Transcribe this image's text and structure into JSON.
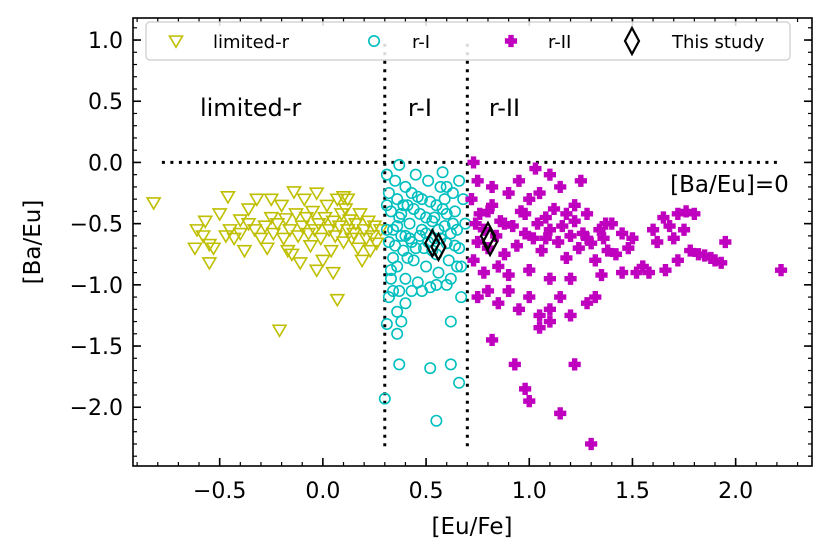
{
  "chart_data": {
    "type": "scatter",
    "xlabel": "[Eu/Fe]",
    "ylabel": "[Ba/Eu]",
    "xlim": [
      -0.92,
      2.37
    ],
    "ylim": [
      -2.48,
      1.18
    ],
    "xticks": [
      -0.5,
      0.0,
      0.5,
      1.0,
      1.5,
      2.0
    ],
    "xtick_labels": [
      "−0.5",
      "0.0",
      "0.5",
      "1.0",
      "1.5",
      "2.0"
    ],
    "yticks": [
      1.0,
      0.5,
      0.0,
      -0.5,
      -1.0,
      -1.5,
      -2.0
    ],
    "ytick_labels": [
      "1.0",
      "0.5",
      "0.0",
      "−0.5",
      "−1.0",
      "−1.5",
      "−2.0"
    ],
    "legend_position": "top",
    "region_labels": [
      {
        "text": "limited-r",
        "x": -0.35,
        "y": 0.38
      },
      {
        "text": "r-I",
        "x": 0.47,
        "y": 0.38
      },
      {
        "text": "r-II",
        "x": 0.88,
        "y": 0.38
      }
    ],
    "annotation": {
      "text": "[Ba/Eu]=0",
      "x": 1.97,
      "y": -0.24
    },
    "reference_lines": [
      {
        "orientation": "horizontal",
        "value": 0.0,
        "from": -0.78,
        "to": 2.2,
        "style": "dotted"
      },
      {
        "orientation": "vertical",
        "value": 0.3,
        "from": 0.97,
        "to": -2.35,
        "style": "dotted"
      },
      {
        "orientation": "vertical",
        "value": 0.7,
        "from": 0.97,
        "to": -2.35,
        "style": "dotted"
      }
    ],
    "series": [
      {
        "name": "limited-r",
        "marker": "triangle-down-open",
        "color": "#bfbf00",
        "points": [
          [
            -0.82,
            -0.33
          ],
          [
            -0.61,
            -0.55
          ],
          [
            -0.58,
            -0.6
          ],
          [
            -0.57,
            -0.48
          ],
          [
            -0.55,
            -0.67
          ],
          [
            -0.53,
            -0.7
          ],
          [
            -0.55,
            -0.82
          ],
          [
            -0.5,
            -0.42
          ],
          [
            -0.47,
            -0.6
          ],
          [
            -0.45,
            -0.55
          ],
          [
            -0.43,
            -0.62
          ],
          [
            -0.4,
            -0.47
          ],
          [
            -0.4,
            -0.58
          ],
          [
            -0.38,
            -0.72
          ],
          [
            -0.36,
            -0.5
          ],
          [
            -0.33,
            -0.55
          ],
          [
            -0.32,
            -0.3
          ],
          [
            -0.3,
            -0.62
          ],
          [
            -0.28,
            -0.52
          ],
          [
            -0.27,
            -0.7
          ],
          [
            -0.25,
            -0.45
          ],
          [
            -0.24,
            -0.58
          ],
          [
            -0.22,
            -0.5
          ],
          [
            -0.2,
            -0.35
          ],
          [
            -0.19,
            -0.62
          ],
          [
            -0.18,
            -0.46
          ],
          [
            -0.17,
            -0.72
          ],
          [
            -0.16,
            -0.55
          ],
          [
            -0.14,
            -0.24
          ],
          [
            -0.13,
            -0.42
          ],
          [
            -0.12,
            -0.6
          ],
          [
            -0.11,
            -0.82
          ],
          [
            -0.1,
            -0.52
          ],
          [
            -0.09,
            -0.3
          ],
          [
            -0.08,
            -0.45
          ],
          [
            -0.07,
            -0.58
          ],
          [
            -0.06,
            -0.68
          ],
          [
            -0.05,
            -0.4
          ],
          [
            -0.04,
            -0.55
          ],
          [
            -0.03,
            -0.25
          ],
          [
            -0.02,
            -0.5
          ],
          [
            -0.01,
            -0.62
          ],
          [
            0.0,
            -0.8
          ],
          [
            0.01,
            -0.45
          ],
          [
            0.02,
            -0.35
          ],
          [
            0.03,
            -0.55
          ],
          [
            0.04,
            -0.72
          ],
          [
            0.05,
            -0.48
          ],
          [
            0.06,
            -0.6
          ],
          [
            0.07,
            -0.3
          ],
          [
            0.08,
            -0.52
          ],
          [
            0.09,
            -0.42
          ],
          [
            0.1,
            -0.65
          ],
          [
            0.11,
            -0.38
          ],
          [
            0.12,
            -0.55
          ],
          [
            0.13,
            -0.47
          ],
          [
            0.14,
            -0.62
          ],
          [
            0.15,
            -0.58
          ],
          [
            0.16,
            -0.5
          ],
          [
            0.17,
            -0.7
          ],
          [
            0.18,
            -0.42
          ],
          [
            0.19,
            -0.8
          ],
          [
            0.2,
            -0.55
          ],
          [
            0.21,
            -0.62
          ],
          [
            0.22,
            -0.48
          ],
          [
            0.23,
            -0.72
          ],
          [
            0.24,
            -0.6
          ],
          [
            0.25,
            -0.52
          ],
          [
            0.26,
            -0.66
          ],
          [
            0.28,
            -0.55
          ],
          [
            0.07,
            -1.12
          ],
          [
            0.05,
            -0.9
          ],
          [
            -0.03,
            -0.88
          ],
          [
            -0.21,
            -1.37
          ],
          [
            -0.46,
            -0.28
          ],
          [
            -0.36,
            -0.38
          ],
          [
            -0.15,
            -0.75
          ],
          [
            0.12,
            -0.3
          ],
          [
            -0.25,
            -0.3
          ],
          [
            -0.62,
            -0.7
          ],
          [
            0.1,
            -0.28
          ]
        ]
      },
      {
        "name": "r-I",
        "marker": "circle-open",
        "color": "#00bfbf",
        "points": [
          [
            0.31,
            -0.1
          ],
          [
            0.32,
            -0.25
          ],
          [
            0.33,
            -0.4
          ],
          [
            0.31,
            -0.55
          ],
          [
            0.32,
            -0.65
          ],
          [
            0.34,
            -0.78
          ],
          [
            0.33,
            -0.88
          ],
          [
            0.35,
            -0.15
          ],
          [
            0.36,
            -0.3
          ],
          [
            0.37,
            -0.02
          ],
          [
            0.37,
            -0.45
          ],
          [
            0.38,
            -0.6
          ],
          [
            0.39,
            -0.72
          ],
          [
            0.36,
            -0.85
          ],
          [
            0.4,
            -0.2
          ],
          [
            0.41,
            -0.35
          ],
          [
            0.42,
            -0.5
          ],
          [
            0.43,
            -0.65
          ],
          [
            0.44,
            -0.8
          ],
          [
            0.4,
            -0.95
          ],
          [
            0.45,
            -0.1
          ],
          [
            0.46,
            -0.28
          ],
          [
            0.47,
            -0.42
          ],
          [
            0.48,
            -0.55
          ],
          [
            0.49,
            -0.7
          ],
          [
            0.5,
            -0.85
          ],
          [
            0.46,
            -0.98
          ],
          [
            0.51,
            -0.15
          ],
          [
            0.52,
            -0.32
          ],
          [
            0.53,
            -0.48
          ],
          [
            0.54,
            -0.62
          ],
          [
            0.55,
            -0.75
          ],
          [
            0.56,
            -0.9
          ],
          [
            0.52,
            -1.02
          ],
          [
            0.57,
            -0.2
          ],
          [
            0.58,
            -0.38
          ],
          [
            0.59,
            -0.52
          ],
          [
            0.6,
            -0.66
          ],
          [
            0.61,
            -0.8
          ],
          [
            0.62,
            -0.95
          ],
          [
            0.58,
            -0.08
          ],
          [
            0.63,
            -0.25
          ],
          [
            0.64,
            -0.4
          ],
          [
            0.65,
            -0.55
          ],
          [
            0.66,
            -0.7
          ],
          [
            0.67,
            -0.85
          ],
          [
            0.68,
            -0.3
          ],
          [
            0.66,
            -0.15
          ],
          [
            0.69,
            -0.5
          ],
          [
            0.34,
            -0.55
          ],
          [
            0.38,
            -0.42
          ],
          [
            0.42,
            -0.62
          ],
          [
            0.44,
            -0.38
          ],
          [
            0.48,
            -0.3
          ],
          [
            0.5,
            -0.58
          ],
          [
            0.54,
            -0.45
          ],
          [
            0.56,
            -0.55
          ],
          [
            0.6,
            -0.42
          ],
          [
            0.62,
            -0.58
          ],
          [
            0.35,
            -0.68
          ],
          [
            0.41,
            -0.78
          ],
          [
            0.47,
            -0.6
          ],
          [
            0.53,
            -0.72
          ],
          [
            0.59,
            -0.3
          ],
          [
            0.64,
            -0.68
          ],
          [
            0.31,
            -0.35
          ],
          [
            0.36,
            -0.52
          ],
          [
            0.39,
            -0.35
          ],
          [
            0.43,
            -0.25
          ],
          [
            0.55,
            -0.35
          ],
          [
            0.6,
            -0.2
          ],
          [
            0.65,
            -0.85
          ],
          [
            0.45,
            -0.7
          ],
          [
            0.5,
            -0.45
          ],
          [
            0.57,
            -0.62
          ],
          [
            0.33,
            -0.95
          ],
          [
            0.37,
            -1.05
          ],
          [
            0.4,
            -0.6
          ],
          [
            0.51,
            -0.65
          ],
          [
            0.63,
            -0.5
          ],
          [
            0.32,
            -1.1
          ],
          [
            0.34,
            -1.05
          ],
          [
            0.36,
            -1.22
          ],
          [
            0.38,
            -1.3
          ],
          [
            0.31,
            -1.32
          ],
          [
            0.4,
            -1.15
          ],
          [
            0.43,
            -1.05
          ],
          [
            0.48,
            -1.05
          ],
          [
            0.55,
            -1.0
          ],
          [
            0.6,
            -1.0
          ],
          [
            0.67,
            -1.1
          ],
          [
            0.62,
            -1.3
          ],
          [
            0.37,
            -1.65
          ],
          [
            0.52,
            -1.68
          ],
          [
            0.62,
            -1.65
          ],
          [
            0.66,
            -1.8
          ],
          [
            0.3,
            -1.93
          ],
          [
            0.55,
            -2.11
          ],
          [
            0.36,
            -1.4
          ]
        ]
      },
      {
        "name": "r-II",
        "marker": "plus-filled",
        "color": "#bf00bf",
        "points": [
          [
            0.72,
            -0.3
          ],
          [
            0.74,
            -0.5
          ],
          [
            0.75,
            -0.65
          ],
          [
            0.73,
            -0.8
          ],
          [
            0.76,
            -0.42
          ],
          [
            0.78,
            -0.55
          ],
          [
            0.8,
            -0.7
          ],
          [
            0.82,
            -0.35
          ],
          [
            0.84,
            -0.6
          ],
          [
            0.86,
            -0.48
          ],
          [
            0.88,
            -0.75
          ],
          [
            0.9,
            -0.25
          ],
          [
            0.92,
            -0.52
          ],
          [
            0.94,
            -0.68
          ],
          [
            0.96,
            -0.4
          ],
          [
            0.98,
            -0.58
          ],
          [
            1.0,
            -0.3
          ],
          [
            1.02,
            -0.62
          ],
          [
            1.04,
            -0.5
          ],
          [
            1.06,
            -0.72
          ],
          [
            1.08,
            -0.45
          ],
          [
            1.1,
            -0.55
          ],
          [
            1.12,
            -0.38
          ],
          [
            1.14,
            -0.65
          ],
          [
            1.16,
            -0.52
          ],
          [
            1.18,
            -0.78
          ],
          [
            1.2,
            -0.6
          ],
          [
            1.22,
            -0.48
          ],
          [
            1.24,
            -0.7
          ],
          [
            1.26,
            -0.58
          ],
          [
            1.28,
            -0.42
          ],
          [
            1.3,
            -0.66
          ],
          [
            1.32,
            -0.8
          ],
          [
            1.34,
            -0.55
          ],
          [
            1.36,
            -0.62
          ],
          [
            1.4,
            -0.5
          ],
          [
            1.42,
            -0.75
          ],
          [
            1.45,
            -0.58
          ],
          [
            1.48,
            -0.7
          ],
          [
            1.5,
            -0.62
          ],
          [
            1.55,
            -0.85
          ],
          [
            1.6,
            -0.55
          ],
          [
            1.65,
            -0.45
          ],
          [
            1.66,
            -0.88
          ],
          [
            1.7,
            -0.62
          ],
          [
            1.72,
            -0.8
          ],
          [
            1.75,
            -0.55
          ],
          [
            1.78,
            -0.72
          ],
          [
            1.8,
            -0.42
          ],
          [
            1.85,
            -0.76
          ],
          [
            1.9,
            -0.8
          ],
          [
            1.93,
            -0.82
          ],
          [
            1.58,
            -0.9
          ],
          [
            1.62,
            -0.65
          ],
          [
            1.68,
            -0.52
          ],
          [
            0.78,
            -0.9
          ],
          [
            0.82,
            -0.2
          ],
          [
            0.85,
            -0.85
          ],
          [
            0.9,
            -0.92
          ],
          [
            0.95,
            -0.15
          ],
          [
            1.0,
            -0.88
          ],
          [
            1.05,
            -0.25
          ],
          [
            1.1,
            -0.95
          ],
          [
            1.15,
            -0.2
          ],
          [
            1.2,
            -0.95
          ],
          [
            1.25,
            -0.15
          ],
          [
            1.35,
            -0.92
          ],
          [
            1.45,
            -0.9
          ],
          [
            1.52,
            -0.9
          ],
          [
            0.75,
            -0.15
          ],
          [
            0.8,
            -0.4
          ],
          [
            0.88,
            -0.5
          ],
          [
            0.98,
            -0.42
          ],
          [
            1.08,
            -0.62
          ],
          [
            1.18,
            -0.42
          ],
          [
            1.28,
            -0.62
          ],
          [
            1.38,
            -0.72
          ],
          [
            0.73,
            0.0
          ],
          [
            1.1,
            -0.1
          ],
          [
            1.22,
            -0.35
          ],
          [
            1.37,
            -0.5
          ],
          [
            1.72,
            -0.42
          ],
          [
            1.76,
            -0.4
          ],
          [
            1.82,
            -0.75
          ],
          [
            1.88,
            -0.78
          ],
          [
            2.22,
            -0.88
          ],
          [
            1.95,
            -0.65
          ],
          [
            1.03,
            -0.05
          ],
          [
            0.75,
            -1.1
          ],
          [
            0.8,
            -1.05
          ],
          [
            0.85,
            -1.15
          ],
          [
            0.9,
            -1.05
          ],
          [
            0.95,
            -1.2
          ],
          [
            1.0,
            -1.1
          ],
          [
            1.05,
            -1.25
          ],
          [
            1.1,
            -1.2
          ],
          [
            1.15,
            -1.1
          ],
          [
            1.2,
            -1.25
          ],
          [
            1.28,
            -1.15
          ],
          [
            1.32,
            -1.1
          ],
          [
            0.82,
            -1.45
          ],
          [
            1.05,
            -1.35
          ],
          [
            1.1,
            -1.3
          ],
          [
            0.93,
            -1.65
          ],
          [
            1.22,
            -1.65
          ],
          [
            0.98,
            -1.85
          ],
          [
            1.0,
            -1.95
          ],
          [
            1.15,
            -2.05
          ],
          [
            1.3,
            -2.3
          ]
        ]
      },
      {
        "name": "This study",
        "marker": "diamond-open",
        "color": "#000000",
        "points": [
          [
            0.53,
            -0.66
          ],
          [
            0.56,
            -0.69
          ],
          [
            0.8,
            -0.6
          ],
          [
            0.81,
            -0.65
          ]
        ]
      }
    ]
  }
}
